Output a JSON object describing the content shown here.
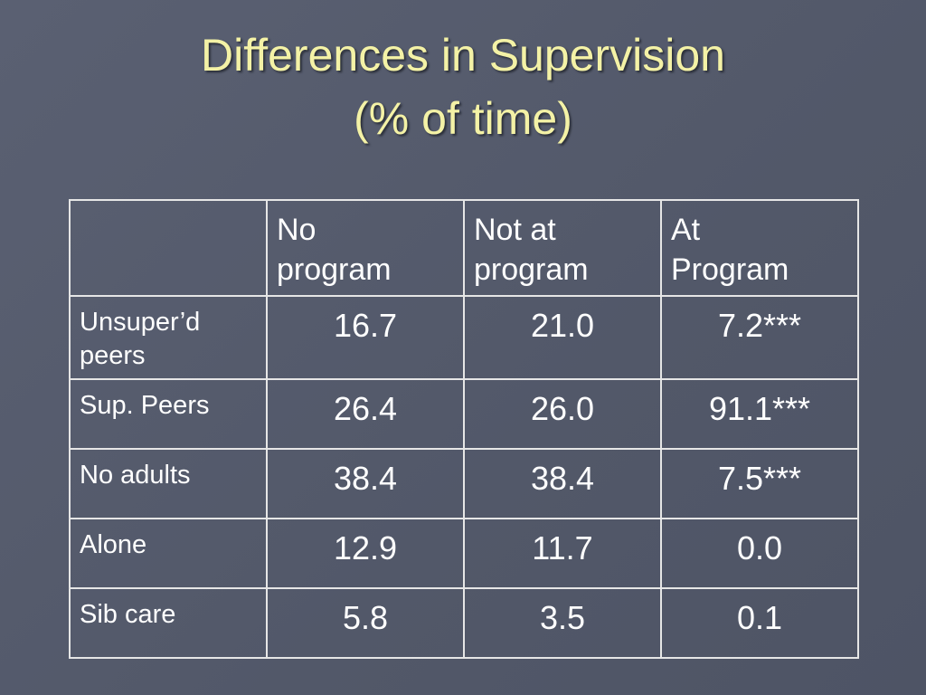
{
  "slide": {
    "title_line1": "Differences in Supervision",
    "title_line2": "(% of time)"
  },
  "table": {
    "headers": [
      "",
      "No program",
      "Not at program",
      "At Program"
    ],
    "header_lines": [
      [
        "",
        ""
      ],
      [
        "No",
        "program"
      ],
      [
        "Not at",
        "program"
      ],
      [
        "At",
        "Program"
      ]
    ],
    "rows": [
      {
        "label_lines": [
          "Unsuper’d",
          "peers"
        ],
        "values": [
          "16.7",
          "21.0",
          "7.2***"
        ]
      },
      {
        "label_lines": [
          "Sup. Peers"
        ],
        "values": [
          "26.4",
          "26.0",
          "91.1***"
        ]
      },
      {
        "label_lines": [
          "No adults"
        ],
        "values": [
          "38.4",
          "38.4",
          "7.5***"
        ]
      },
      {
        "label_lines": [
          "Alone"
        ],
        "values": [
          "12.9",
          "11.7",
          "0.0"
        ]
      },
      {
        "label_lines": [
          "Sib care"
        ],
        "values": [
          "5.8",
          "3.5",
          "0.1"
        ]
      }
    ]
  },
  "colors": {
    "background": "#545a6b",
    "title": "#f4f2a6",
    "text": "#ffffff",
    "grid": "#e6e6e6"
  }
}
